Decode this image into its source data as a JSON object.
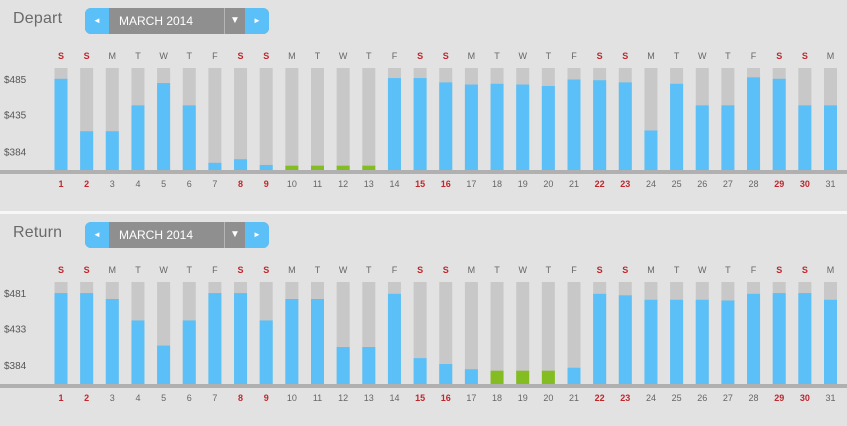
{
  "colors": {
    "bar_available": "#5bc0f8",
    "bar_cheapest": "#84bd22",
    "bar_track": "#c8c8c8",
    "weekend_text": "#c0272d",
    "weekday_text": "#666666",
    "baseline": "#b0b0b0"
  },
  "icons": {
    "prev": "triangle-left-icon",
    "next": "triangle-right-icon",
    "dropdown": "triangle-down-icon"
  },
  "days": {
    "weekday_letters": [
      "S",
      "S",
      "M",
      "T",
      "W",
      "T",
      "F",
      "S",
      "S",
      "M",
      "T",
      "W",
      "T",
      "F",
      "S",
      "S",
      "M",
      "T",
      "W",
      "T",
      "F",
      "S",
      "S",
      "M",
      "T",
      "W",
      "T",
      "F",
      "S",
      "S",
      "M"
    ],
    "numbers": [
      "1",
      "2",
      "3",
      "4",
      "5",
      "6",
      "7",
      "8",
      "9",
      "10",
      "11",
      "12",
      "13",
      "14",
      "15",
      "16",
      "17",
      "18",
      "19",
      "20",
      "21",
      "22",
      "23",
      "24",
      "25",
      "26",
      "27",
      "28",
      "29",
      "30",
      "31"
    ],
    "weekend_flags": [
      true,
      true,
      false,
      false,
      false,
      false,
      false,
      true,
      true,
      false,
      false,
      false,
      false,
      false,
      true,
      true,
      false,
      false,
      false,
      false,
      false,
      true,
      true,
      false,
      false,
      false,
      false,
      false,
      true,
      true,
      false
    ]
  },
  "depart": {
    "title": "Depart",
    "month_label": "MARCH 2014",
    "prev_symbol": "◄",
    "next_symbol": "►",
    "dropdown_symbol": "▼",
    "chart_data": {
      "type": "bar",
      "categories": [
        "1",
        "2",
        "3",
        "4",
        "5",
        "6",
        "7",
        "8",
        "9",
        "10",
        "11",
        "12",
        "13",
        "14",
        "15",
        "16",
        "17",
        "18",
        "19",
        "20",
        "21",
        "22",
        "23",
        "24",
        "25",
        "26",
        "27",
        "28",
        "29",
        "30",
        "31"
      ],
      "ytick_labels": [
        "$485",
        "$435",
        "$384"
      ],
      "yticks": [
        485,
        435,
        384
      ],
      "ylim": [
        358,
        500
      ],
      "values": [
        485,
        412,
        412,
        448,
        479,
        448,
        368,
        373,
        365,
        364,
        364,
        364,
        364,
        486,
        486,
        480,
        477,
        478,
        477,
        475,
        484,
        483,
        480,
        413,
        478,
        448,
        448,
        487,
        485,
        448,
        448
      ],
      "cheapest": [
        false,
        false,
        false,
        false,
        false,
        false,
        false,
        false,
        false,
        true,
        true,
        true,
        true,
        false,
        false,
        false,
        false,
        false,
        false,
        false,
        false,
        false,
        false,
        false,
        false,
        false,
        false,
        false,
        false,
        false,
        false
      ]
    }
  },
  "return": {
    "title": "Return",
    "month_label": "MARCH 2014",
    "prev_symbol": "◄",
    "next_symbol": "►",
    "dropdown_symbol": "▼",
    "chart_data": {
      "type": "bar",
      "categories": [
        "1",
        "2",
        "3",
        "4",
        "5",
        "6",
        "7",
        "8",
        "9",
        "10",
        "11",
        "12",
        "13",
        "14",
        "15",
        "16",
        "17",
        "18",
        "19",
        "20",
        "21",
        "22",
        "23",
        "24",
        "25",
        "26",
        "27",
        "28",
        "29",
        "30",
        "31"
      ],
      "ytick_labels": [
        "$481",
        "$433",
        "$384"
      ],
      "yticks": [
        481,
        433,
        384
      ],
      "ylim": [
        358,
        496
      ],
      "values": [
        481,
        481,
        473,
        444,
        410,
        444,
        481,
        481,
        444,
        473,
        473,
        408,
        408,
        480,
        393,
        385,
        378,
        376,
        376,
        376,
        380,
        480,
        478,
        472,
        472,
        472,
        471,
        480,
        481,
        481,
        472
      ],
      "cheapest": [
        false,
        false,
        false,
        false,
        false,
        false,
        false,
        false,
        false,
        false,
        false,
        false,
        false,
        false,
        false,
        false,
        false,
        true,
        true,
        true,
        false,
        false,
        false,
        false,
        false,
        false,
        false,
        false,
        false,
        false,
        false
      ]
    }
  }
}
